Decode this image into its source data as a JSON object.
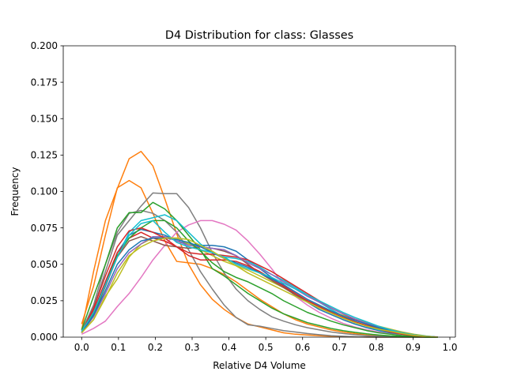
{
  "chart_data": {
    "type": "line",
    "title": "D4 Distribution for class: Glasses",
    "xlabel": "Relative D4 Volume",
    "ylabel": "Frequency",
    "xlim": [
      -0.05,
      1.015
    ],
    "ylim": [
      0.0,
      0.2
    ],
    "xticks": [
      "0.0",
      "0.1",
      "0.2",
      "0.3",
      "0.4",
      "0.5",
      "0.6",
      "0.7",
      "0.8",
      "0.9",
      "1.0"
    ],
    "yticks": [
      "0.000",
      "0.025",
      "0.050",
      "0.075",
      "0.100",
      "0.125",
      "0.150",
      "0.175",
      "0.200"
    ],
    "grid": false,
    "legend": "none",
    "x": [
      0.0,
      0.0323,
      0.0645,
      0.0968,
      0.129,
      0.1613,
      0.1935,
      0.2258,
      0.2581,
      0.2903,
      0.3226,
      0.3548,
      0.3871,
      0.4194,
      0.4516,
      0.4839,
      0.5161,
      0.5484,
      0.5806,
      0.6129,
      0.6452,
      0.6774,
      0.7097,
      0.7419,
      0.7742,
      0.8065,
      0.8387,
      0.871,
      0.9032,
      0.9355,
      0.9677
    ],
    "series": [
      {
        "color": "#ff7f0e",
        "values": [
          0.005,
          0.045,
          0.08,
          0.102,
          0.1225,
          0.1275,
          0.1175,
          0.095,
          0.071,
          0.05,
          0.036,
          0.026,
          0.019,
          0.0135,
          0.009,
          0.007,
          0.005,
          0.003,
          0.002,
          0.0015,
          0.001,
          0.0006,
          0.0004,
          0.0002,
          0.0001,
          0.0,
          0.0,
          0.0,
          0.0,
          0.0,
          0.0
        ]
      },
      {
        "color": "#ff7f0e",
        "values": [
          0.009,
          0.035,
          0.07,
          0.1025,
          0.1075,
          0.1025,
          0.085,
          0.066,
          0.052,
          0.051,
          0.05,
          0.047,
          0.043,
          0.038,
          0.032,
          0.026,
          0.021,
          0.016,
          0.012,
          0.009,
          0.007,
          0.005,
          0.0035,
          0.0025,
          0.0015,
          0.001,
          0.0006,
          0.0003,
          0.0001,
          0.0,
          0.0
        ]
      },
      {
        "color": "#7f7f7f",
        "values": [
          0.003,
          0.02,
          0.045,
          0.07,
          0.08,
          0.09,
          0.099,
          0.0985,
          0.0985,
          0.089,
          0.075,
          0.058,
          0.044,
          0.033,
          0.025,
          0.019,
          0.014,
          0.011,
          0.0085,
          0.0065,
          0.005,
          0.0035,
          0.0025,
          0.0017,
          0.001,
          0.0006,
          0.0003,
          0.0001,
          0.0,
          0.0,
          0.0
        ]
      },
      {
        "color": "#7f7f7f",
        "values": [
          0.004,
          0.022,
          0.05,
          0.072,
          0.085,
          0.087,
          0.085,
          0.08,
          0.072,
          0.06,
          0.045,
          0.033,
          0.022,
          0.0135,
          0.0085,
          0.0075,
          0.006,
          0.0045,
          0.0035,
          0.0025,
          0.0017,
          0.001,
          0.0006,
          0.0003,
          0.0001,
          0.0,
          0.0,
          0.0,
          0.0,
          0.0,
          0.0
        ]
      },
      {
        "color": "#e377c2",
        "values": [
          0.002,
          0.006,
          0.011,
          0.021,
          0.03,
          0.041,
          0.053,
          0.063,
          0.072,
          0.077,
          0.08,
          0.08,
          0.0775,
          0.0735,
          0.066,
          0.057,
          0.047,
          0.036,
          0.028,
          0.022,
          0.017,
          0.013,
          0.0095,
          0.007,
          0.005,
          0.0035,
          0.0025,
          0.0017,
          0.001,
          0.0005,
          0.0002
        ]
      },
      {
        "color": "#2ca02c",
        "values": [
          0.005,
          0.028,
          0.05,
          0.075,
          0.0855,
          0.0855,
          0.0925,
          0.088,
          0.08,
          0.07,
          0.06,
          0.047,
          0.042,
          0.036,
          0.03,
          0.025,
          0.02,
          0.016,
          0.013,
          0.01,
          0.008,
          0.006,
          0.0045,
          0.0033,
          0.0023,
          0.0015,
          0.0009,
          0.0005,
          0.0002,
          0.0001,
          0.0
        ]
      },
      {
        "color": "#1f77b4",
        "values": [
          0.003,
          0.018,
          0.038,
          0.058,
          0.07,
          0.074,
          0.072,
          0.07,
          0.066,
          0.064,
          0.063,
          0.063,
          0.062,
          0.059,
          0.053,
          0.047,
          0.041,
          0.035,
          0.029,
          0.024,
          0.019,
          0.0155,
          0.012,
          0.009,
          0.0065,
          0.0045,
          0.003,
          0.002,
          0.001,
          0.0005,
          0.0
        ]
      },
      {
        "color": "#17becf",
        "values": [
          0.003,
          0.016,
          0.035,
          0.055,
          0.072,
          0.08,
          0.082,
          0.084,
          0.08,
          0.072,
          0.064,
          0.058,
          0.055,
          0.054,
          0.052,
          0.048,
          0.043,
          0.039,
          0.034,
          0.029,
          0.024,
          0.019,
          0.0145,
          0.0105,
          0.0075,
          0.005,
          0.0035,
          0.002,
          0.001,
          0.0005,
          0.0
        ]
      },
      {
        "color": "#bcbd22",
        "values": [
          0.003,
          0.012,
          0.028,
          0.04,
          0.055,
          0.064,
          0.068,
          0.068,
          0.068,
          0.064,
          0.06,
          0.056,
          0.052,
          0.049,
          0.046,
          0.042,
          0.038,
          0.034,
          0.029,
          0.025,
          0.021,
          0.0175,
          0.015,
          0.0125,
          0.01,
          0.0075,
          0.0055,
          0.0035,
          0.002,
          0.0008,
          0.0
        ]
      },
      {
        "color": "#d62728",
        "values": [
          0.003,
          0.018,
          0.038,
          0.058,
          0.068,
          0.072,
          0.068,
          0.066,
          0.062,
          0.058,
          0.057,
          0.057,
          0.056,
          0.055,
          0.053,
          0.049,
          0.045,
          0.04,
          0.035,
          0.03,
          0.025,
          0.02,
          0.016,
          0.012,
          0.009,
          0.006,
          0.004,
          0.0025,
          0.0012,
          0.0005,
          0.0
        ]
      },
      {
        "color": "#8c564b",
        "values": [
          0.003,
          0.015,
          0.035,
          0.055,
          0.066,
          0.069,
          0.066,
          0.063,
          0.062,
          0.061,
          0.062,
          0.061,
          0.059,
          0.056,
          0.05,
          0.044,
          0.039,
          0.034,
          0.029,
          0.025,
          0.021,
          0.017,
          0.0135,
          0.0105,
          0.008,
          0.006,
          0.004,
          0.0025,
          0.0012,
          0.0005,
          0.0
        ]
      },
      {
        "color": "#9467bd",
        "values": [
          0.003,
          0.014,
          0.03,
          0.047,
          0.058,
          0.064,
          0.069,
          0.069,
          0.066,
          0.063,
          0.062,
          0.061,
          0.06,
          0.056,
          0.051,
          0.047,
          0.043,
          0.038,
          0.033,
          0.028,
          0.024,
          0.02,
          0.016,
          0.0125,
          0.0095,
          0.007,
          0.005,
          0.003,
          0.0015,
          0.0006,
          0.0
        ]
      },
      {
        "color": "#2ca02c",
        "values": [
          0.003,
          0.016,
          0.036,
          0.056,
          0.068,
          0.075,
          0.08,
          0.08,
          0.075,
          0.066,
          0.059,
          0.051,
          0.045,
          0.041,
          0.038,
          0.034,
          0.03,
          0.025,
          0.021,
          0.017,
          0.014,
          0.011,
          0.0085,
          0.0065,
          0.0045,
          0.003,
          0.002,
          0.001,
          0.0005,
          0.0,
          0.0
        ]
      },
      {
        "color": "#d62728",
        "values": [
          0.003,
          0.02,
          0.042,
          0.062,
          0.073,
          0.075,
          0.072,
          0.068,
          0.062,
          0.056,
          0.053,
          0.053,
          0.053,
          0.052,
          0.049,
          0.045,
          0.04,
          0.035,
          0.03,
          0.025,
          0.021,
          0.017,
          0.0135,
          0.0105,
          0.008,
          0.0055,
          0.0035,
          0.002,
          0.001,
          0.0004,
          0.0
        ]
      },
      {
        "color": "#1f77b4",
        "values": [
          0.003,
          0.015,
          0.032,
          0.05,
          0.06,
          0.066,
          0.068,
          0.068,
          0.067,
          0.065,
          0.062,
          0.058,
          0.054,
          0.051,
          0.048,
          0.044,
          0.04,
          0.036,
          0.031,
          0.026,
          0.022,
          0.018,
          0.0145,
          0.0115,
          0.009,
          0.0065,
          0.0045,
          0.003,
          0.0015,
          0.0007,
          0.0
        ]
      },
      {
        "color": "#17becf",
        "values": [
          0.004,
          0.017,
          0.036,
          0.055,
          0.07,
          0.078,
          0.08,
          0.072,
          0.065,
          0.062,
          0.06,
          0.058,
          0.055,
          0.05,
          0.047,
          0.044,
          0.041,
          0.037,
          0.033,
          0.029,
          0.025,
          0.021,
          0.017,
          0.0135,
          0.0105,
          0.0075,
          0.005,
          0.003,
          0.0015,
          0.0006,
          0.0
        ]
      },
      {
        "color": "#bcbd22",
        "values": [
          0.003,
          0.012,
          0.027,
          0.044,
          0.056,
          0.062,
          0.066,
          0.068,
          0.068,
          0.067,
          0.063,
          0.059,
          0.054,
          0.049,
          0.044,
          0.04,
          0.036,
          0.032,
          0.028,
          0.024,
          0.02,
          0.0165,
          0.013,
          0.01,
          0.0075,
          0.0055,
          0.004,
          0.0025,
          0.0012,
          0.0005,
          0.0
        ]
      }
    ]
  }
}
